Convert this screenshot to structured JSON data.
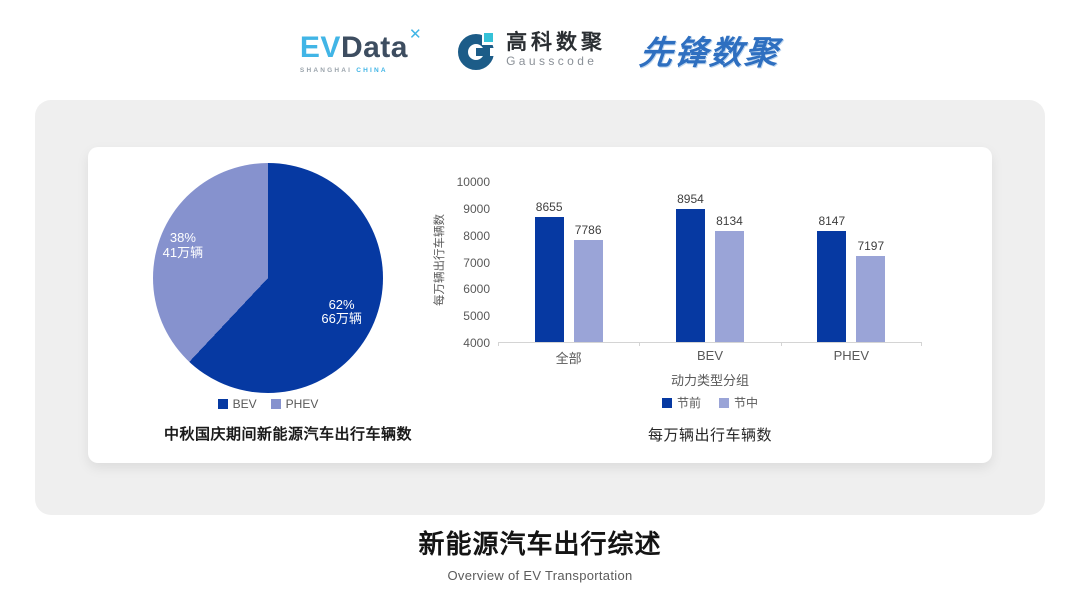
{
  "header": {
    "evdata_logo": {
      "ev": "EV",
      "data": "Data",
      "mark": "✕",
      "sub1": "SHANGHAI",
      "sub2": "CHINA"
    },
    "gausscode_logo": {
      "cn": "高科数聚",
      "en": "Gausscode"
    },
    "xianfeng_logo": {
      "text": "先锋数聚"
    }
  },
  "footer": {
    "title": "新能源汽车出行综述",
    "subtitle": "Overview of EV Transportation"
  },
  "colors": {
    "primary_dark_blue": "#0639a2",
    "pie_light_blue": "#8692ce",
    "bar_light_blue": "#9aa4d7",
    "panel_bg": "#efefef",
    "axis_text": "#595959"
  },
  "chart_data": [
    {
      "type": "pie",
      "title": "中秋国庆期间新能源汽车出行车辆数",
      "start_angle_deg": 0,
      "slices": [
        {
          "label": "BEV",
          "percent": 62,
          "value_label": "62%",
          "amount_label": "66万辆",
          "color": "#0639a2"
        },
        {
          "label": "PHEV",
          "percent": 38,
          "value_label": "38%",
          "amount_label": "41万辆",
          "color": "#8692ce"
        }
      ],
      "legend": [
        "BEV",
        "PHEV"
      ],
      "legend_position": "bottom"
    },
    {
      "type": "bar",
      "title": "每万辆出行车辆数",
      "categories": [
        "全部",
        "BEV",
        "PHEV"
      ],
      "series": [
        {
          "name": "节前",
          "values": [
            8655,
            8954,
            8147
          ],
          "color": "#0639a2"
        },
        {
          "name": "节中",
          "values": [
            7786,
            8134,
            7197
          ],
          "color": "#9aa4d7"
        }
      ],
      "xlabel": "动力类型分组",
      "ylabel": "每万辆出行车辆数",
      "ylim": [
        4000,
        10000
      ],
      "ytick_step": 1000,
      "grid": false,
      "legend_position": "bottom",
      "data_labels": true
    }
  ]
}
